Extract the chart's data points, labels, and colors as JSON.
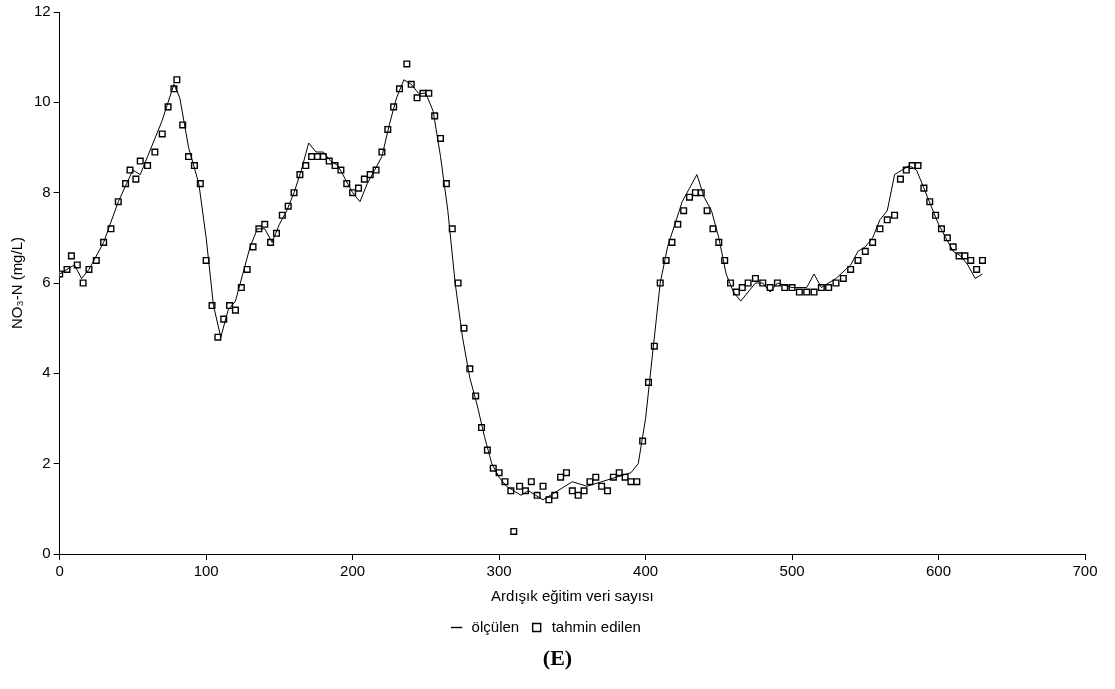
{
  "chart_data": {
    "type": "scatter",
    "xlabel": "Ardışık eğitim veri sayısı",
    "ylabel": "NO₃-N (mg/L)",
    "annotations": [
      "(E)"
    ],
    "xlim": [
      0,
      700
    ],
    "ylim": [
      0,
      12
    ],
    "xticks": [
      0,
      100,
      200,
      300,
      400,
      500,
      600,
      700
    ],
    "yticks": [
      0,
      2,
      4,
      6,
      8,
      10,
      12
    ],
    "grid": false,
    "legend": "bottom",
    "marker": "square",
    "series": [
      {
        "name": "ölçülen",
        "type": "line",
        "marker": "none",
        "line_style": "solid",
        "color": "#000000",
        "x": [
          0,
          10,
          15,
          20,
          30,
          40,
          50,
          55,
          60,
          70,
          78,
          82,
          88,
          95,
          100,
          105,
          110,
          115,
          120,
          125,
          130,
          135,
          140,
          145,
          150,
          155,
          160,
          165,
          170,
          175,
          180,
          185,
          190,
          195,
          200,
          205,
          210,
          215,
          220,
          225,
          230,
          235,
          240,
          245,
          250,
          255,
          260,
          265,
          270,
          275,
          280,
          285,
          290,
          295,
          300,
          305,
          310,
          315,
          320,
          325,
          330,
          340,
          350,
          360,
          370,
          380,
          390,
          395,
          400,
          405,
          410,
          415,
          420,
          425,
          430,
          435,
          440,
          445,
          450,
          455,
          460,
          465,
          470,
          475,
          480,
          485,
          490,
          500,
          510,
          515,
          520,
          530,
          540,
          545,
          550,
          555,
          560,
          565,
          570,
          575,
          580,
          585,
          590,
          595,
          600,
          605,
          610,
          615,
          620,
          625,
          630
        ],
        "values": [
          6.2,
          6.4,
          6.1,
          6.3,
          6.9,
          7.8,
          8.5,
          8.4,
          8.8,
          9.6,
          10.4,
          10.1,
          9.0,
          8.2,
          7.0,
          5.5,
          4.8,
          5.4,
          5.6,
          6.2,
          6.8,
          7.2,
          7.2,
          6.9,
          7.3,
          7.6,
          8.0,
          8.5,
          9.1,
          8.9,
          8.9,
          8.7,
          8.6,
          8.3,
          8.0,
          7.8,
          8.2,
          8.5,
          8.8,
          9.5,
          10.1,
          10.5,
          10.4,
          10.2,
          10.2,
          9.8,
          8.8,
          7.6,
          6.0,
          4.8,
          3.9,
          3.3,
          2.6,
          2.0,
          1.7,
          1.5,
          1.4,
          1.3,
          1.4,
          1.3,
          1.2,
          1.4,
          1.6,
          1.5,
          1.6,
          1.7,
          1.8,
          2.0,
          3.0,
          4.5,
          6.0,
          6.8,
          7.3,
          7.8,
          8.1,
          8.4,
          7.9,
          7.6,
          7.0,
          6.2,
          5.8,
          5.6,
          5.8,
          6.0,
          6.0,
          5.8,
          6.0,
          5.9,
          5.9,
          6.2,
          5.9,
          6.1,
          6.4,
          6.7,
          6.8,
          7.0,
          7.4,
          7.6,
          8.4,
          8.5,
          8.6,
          8.5,
          8.1,
          7.7,
          7.3,
          7.0,
          6.7,
          6.6,
          6.4,
          6.1,
          6.2
        ]
      },
      {
        "name": "tahmin edilen",
        "color": "#000000",
        "x": [
          0,
          5,
          8,
          12,
          16,
          20,
          25,
          30,
          35,
          40,
          45,
          48,
          52,
          55,
          60,
          65,
          70,
          74,
          78,
          80,
          84,
          88,
          92,
          96,
          100,
          104,
          108,
          112,
          116,
          120,
          124,
          128,
          132,
          136,
          140,
          144,
          148,
          152,
          156,
          160,
          164,
          168,
          172,
          176,
          180,
          184,
          188,
          192,
          196,
          200,
          204,
          208,
          212,
          216,
          220,
          224,
          228,
          232,
          237,
          240,
          244,
          248,
          252,
          256,
          260,
          264,
          268,
          272,
          276,
          280,
          284,
          288,
          292,
          296,
          300,
          304,
          308,
          310,
          314,
          318,
          322,
          326,
          330,
          334,
          338,
          342,
          346,
          350,
          354,
          358,
          362,
          366,
          370,
          374,
          378,
          382,
          386,
          390,
          394,
          398,
          402,
          406,
          410,
          414,
          418,
          422,
          426,
          430,
          434,
          438,
          442,
          446,
          450,
          454,
          458,
          462,
          466,
          470,
          475,
          480,
          485,
          490,
          495,
          500,
          505,
          510,
          515,
          520,
          525,
          530,
          535,
          540,
          545,
          550,
          555,
          560,
          565,
          570,
          574,
          578,
          582,
          586,
          590,
          594,
          598,
          602,
          606,
          610,
          614,
          618,
          622,
          626,
          630
        ],
        "values": [
          6.2,
          6.3,
          6.6,
          6.4,
          6.0,
          6.3,
          6.5,
          6.9,
          7.2,
          7.8,
          8.2,
          8.5,
          8.3,
          8.7,
          8.6,
          8.9,
          9.3,
          9.9,
          10.3,
          10.5,
          9.5,
          8.8,
          8.6,
          8.2,
          6.5,
          5.5,
          4.8,
          5.2,
          5.5,
          5.4,
          5.9,
          6.3,
          6.8,
          7.2,
          7.3,
          6.9,
          7.1,
          7.5,
          7.7,
          8.0,
          8.4,
          8.6,
          8.8,
          8.8,
          8.8,
          8.7,
          8.6,
          8.5,
          8.2,
          8.0,
          8.1,
          8.3,
          8.4,
          8.5,
          8.9,
          9.4,
          9.9,
          10.3,
          10.85,
          10.4,
          10.1,
          10.2,
          10.2,
          9.7,
          9.2,
          8.2,
          7.2,
          6.0,
          5.0,
          4.1,
          3.5,
          2.8,
          2.3,
          1.9,
          1.8,
          1.6,
          1.4,
          0.5,
          1.5,
          1.4,
          1.6,
          1.3,
          1.5,
          1.2,
          1.3,
          1.7,
          1.8,
          1.4,
          1.3,
          1.4,
          1.6,
          1.7,
          1.5,
          1.4,
          1.7,
          1.8,
          1.7,
          1.6,
          1.6,
          2.5,
          3.8,
          4.6,
          6.0,
          6.5,
          6.9,
          7.3,
          7.6,
          7.9,
          8.0,
          8.0,
          7.6,
          7.2,
          6.9,
          6.5,
          6.0,
          5.8,
          5.9,
          6.0,
          6.1,
          6.0,
          5.9,
          6.0,
          5.9,
          5.9,
          5.8,
          5.8,
          5.8,
          5.9,
          5.9,
          6.0,
          6.1,
          6.3,
          6.5,
          6.7,
          6.9,
          7.2,
          7.4,
          7.5,
          8.3,
          8.5,
          8.6,
          8.6,
          8.1,
          7.8,
          7.5,
          7.2,
          7.0,
          6.8,
          6.6,
          6.6,
          6.5,
          6.3,
          6.5
        ]
      }
    ]
  }
}
